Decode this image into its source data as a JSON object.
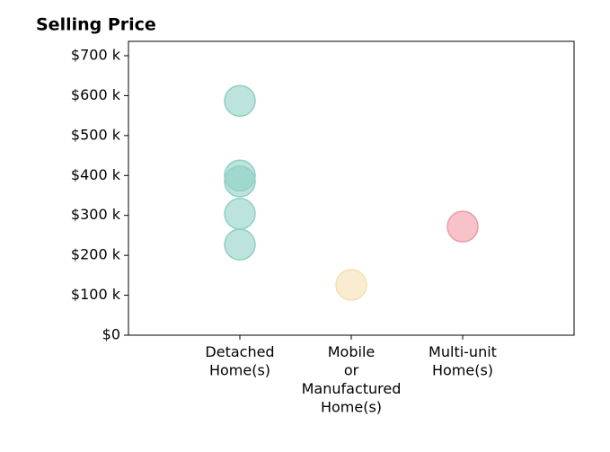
{
  "chart_data": {
    "type": "scatter",
    "title": "Selling Price",
    "categories": [
      [
        "Detached",
        "Home(s)"
      ],
      [
        "Mobile",
        "or",
        "Manufactured",
        "Home(s)"
      ],
      [
        "Multi-unit",
        "Home(s)"
      ]
    ],
    "values": [
      [
        587000,
        400000,
        385000,
        304000,
        227000
      ],
      [
        126000
      ],
      [
        272000
      ]
    ],
    "colors": [
      "#8fd0c5",
      "#f5dfb0",
      "#f19aa5"
    ],
    "ylim": [
      0,
      736000
    ],
    "yticks": [
      {
        "value": 0,
        "label": "$0"
      },
      {
        "value": 100000,
        "label": "$100 k"
      },
      {
        "value": 200000,
        "label": "$200 k"
      },
      {
        "value": 300000,
        "label": "$300 k"
      },
      {
        "value": 400000,
        "label": "$400 k"
      },
      {
        "value": 500000,
        "label": "$500 k"
      },
      {
        "value": 600000,
        "label": "$600 k"
      },
      {
        "value": 700000,
        "label": "$700 k"
      }
    ],
    "grid": false
  }
}
